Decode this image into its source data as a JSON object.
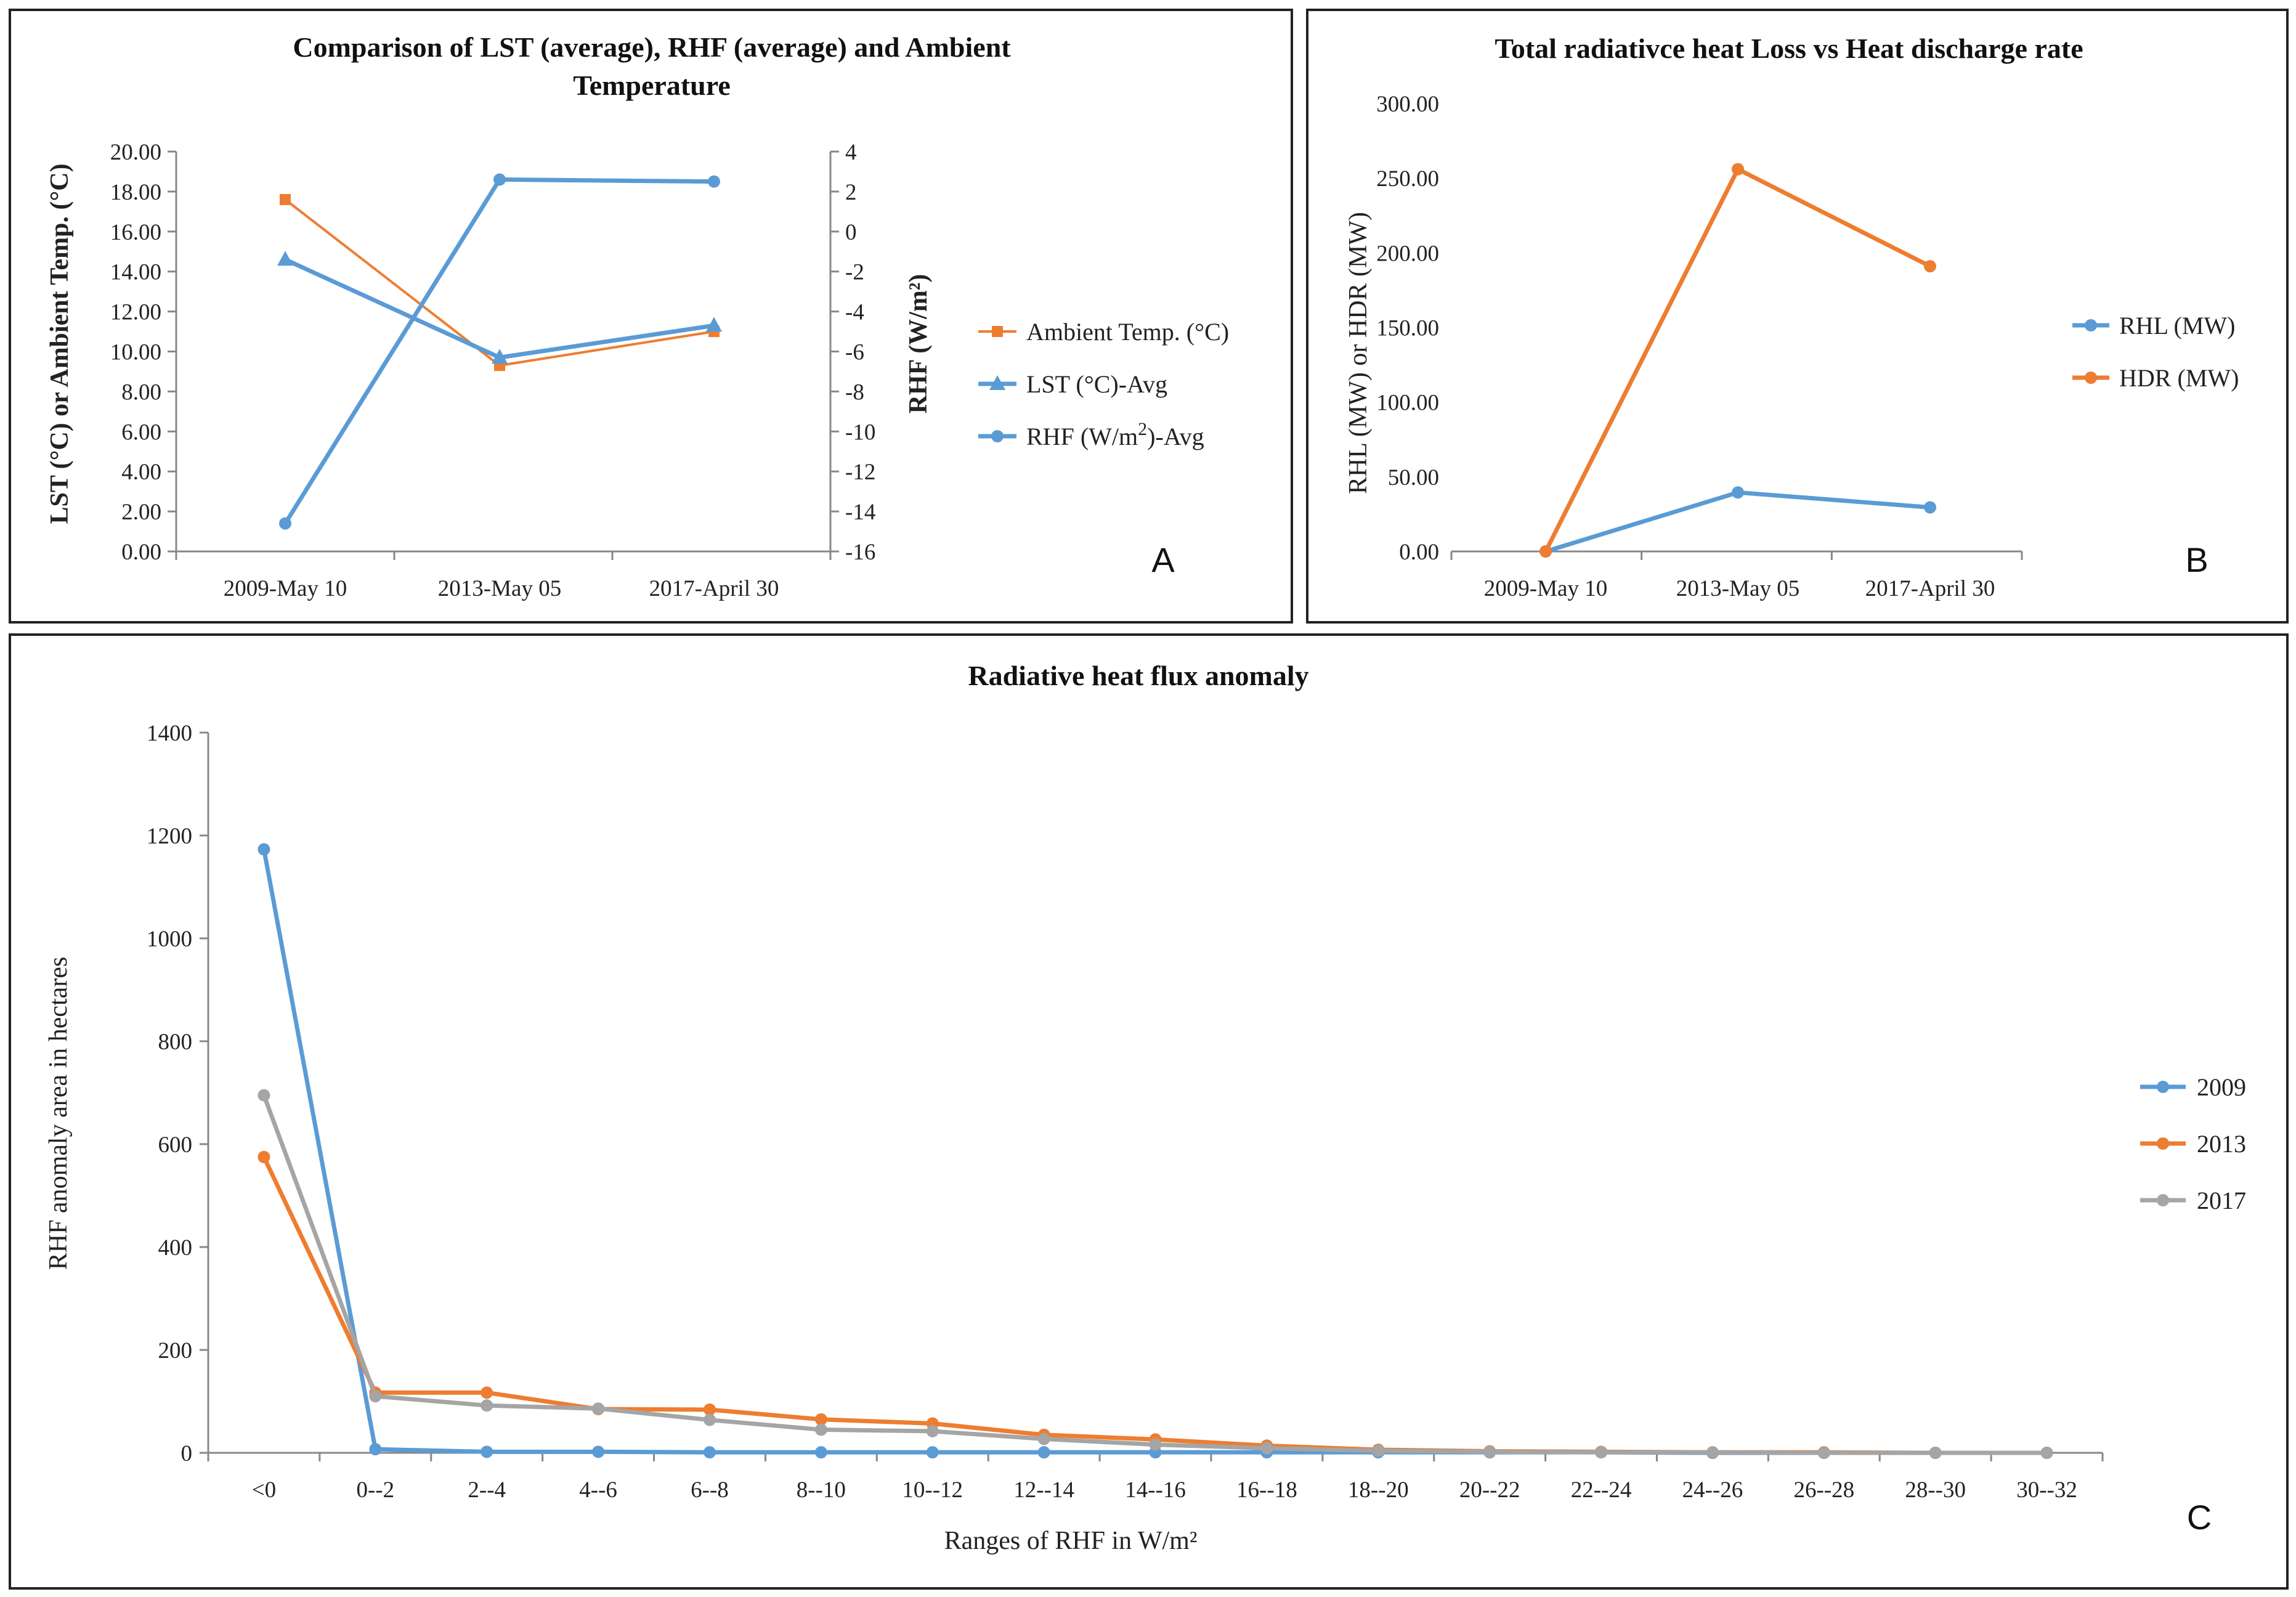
{
  "chart_data": [
    {
      "id": "A",
      "type": "line",
      "title": "Comparison of LST (average), RHF (average) and Ambient Temperature",
      "title_lines": [
        "Comparison of LST (average), RHF (average) and Ambient",
        "Temperature"
      ],
      "panel_letter": "A",
      "categories": [
        "2009-May 10",
        "2013-May 05",
        "2017-April 30"
      ],
      "ylabel_left": "LST (°C) or Ambient Temp. (°C)",
      "ylabel_right": "RHF (W/m²)",
      "ylim_left": [
        0,
        20
      ],
      "ylim_right": [
        -16,
        4
      ],
      "yticks_left": [
        "0.00",
        "2.00",
        "4.00",
        "6.00",
        "8.00",
        "10.00",
        "12.00",
        "14.00",
        "16.00",
        "18.00",
        "20.00"
      ],
      "yticks_right": [
        "-16",
        "-14",
        "-12",
        "-10",
        "-8",
        "-6",
        "-4",
        "-2",
        "0",
        "2",
        "4"
      ],
      "series": [
        {
          "name": "Ambient Temp. (°C)",
          "values": [
            17.6,
            9.3,
            11.0
          ],
          "axis": "left",
          "color": "#ED7D31",
          "marker": "square",
          "width": 4
        },
        {
          "name": "LST (°C)-Avg",
          "values": [
            14.6,
            9.7,
            11.3
          ],
          "axis": "left",
          "color": "#5B9BD5",
          "marker": "triangle",
          "width": 7
        },
        {
          "name": "RHF (W/m2)-Avg",
          "legend_main": "RHF (W/m",
          "legend_sup": "2",
          "legend_tail": ")-Avg",
          "values": [
            -14.6,
            2.6,
            2.5
          ],
          "axis": "right",
          "color": "#5B9BD5",
          "marker": "circle",
          "width": 7
        }
      ]
    },
    {
      "id": "B",
      "type": "line",
      "title": "Total radiativce heat Loss vs Heat discharge rate",
      "panel_letter": "B",
      "categories": [
        "2009-May 10",
        "2013-May 05",
        "2017-April 30"
      ],
      "ylabel": "RHL (MW) or HDR (MW)",
      "ylim": [
        0,
        300
      ],
      "yticks": [
        "0.00",
        "50.00",
        "100.00",
        "150.00",
        "200.00",
        "250.00",
        "300.00"
      ],
      "series": [
        {
          "name": "RHL (MW)",
          "values": [
            0,
            39.5,
            29.5
          ],
          "color": "#5B9BD5"
        },
        {
          "name": "HDR (MW)",
          "values": [
            0,
            256,
            191
          ],
          "color": "#ED7D31"
        }
      ]
    },
    {
      "id": "C",
      "type": "line",
      "title": "Radiative heat flux anomaly",
      "panel_letter": "C",
      "categories": [
        "<0",
        "0--2",
        "2--4",
        "4--6",
        "6--8",
        "8--10",
        "10--12",
        "12--14",
        "14--16",
        "16--18",
        "18--20",
        "20--22",
        "22--24",
        "24--26",
        "26--28",
        "28--30",
        "30--32"
      ],
      "xlabel": "Ranges of RHF in W/m²",
      "ylabel": "RHF anomaly area in hectares",
      "ylim": [
        0,
        1400
      ],
      "yticks": [
        "0",
        "200",
        "400",
        "600",
        "800",
        "1000",
        "1200",
        "1400"
      ],
      "series": [
        {
          "name": "2009",
          "values": [
            1173,
            7,
            2,
            2,
            1,
            1,
            1,
            1,
            1,
            1,
            1,
            1,
            1,
            0,
            0,
            0,
            0
          ],
          "color": "#5B9BD5"
        },
        {
          "name": "2013",
          "values": [
            575,
            117,
            117,
            85,
            84,
            65,
            57,
            35,
            26,
            14,
            6,
            3,
            2,
            1,
            1,
            0,
            0
          ],
          "color": "#ED7D31"
        },
        {
          "name": "2017",
          "values": [
            695,
            110,
            92,
            86,
            64,
            45,
            42,
            27,
            16,
            9,
            4,
            2,
            1,
            1,
            0,
            0,
            0
          ],
          "color": "#A5A5A5"
        }
      ]
    }
  ]
}
